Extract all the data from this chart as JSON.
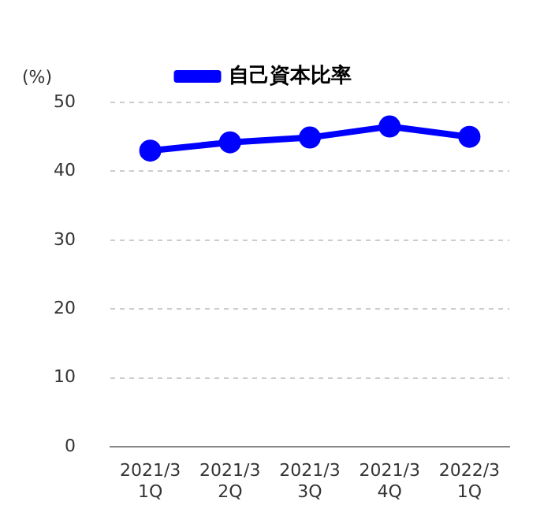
{
  "chart_data": {
    "type": "line",
    "ylabel": "(%)",
    "categories": [
      "2021/3\n1Q",
      "2021/3\n2Q",
      "2021/3\n3Q",
      "2021/3\n4Q",
      "2022/3\n1Q"
    ],
    "series": [
      {
        "name": "自己資本比率",
        "color": "#0000ff",
        "values": [
          43.0,
          44.2,
          44.9,
          46.5,
          45.0
        ]
      }
    ],
    "ylim": [
      0,
      50
    ],
    "yticks": [
      0,
      10,
      20,
      30,
      40,
      50
    ],
    "grid": "y",
    "legend": "top",
    "marker": "circle",
    "line_style": "solid"
  }
}
